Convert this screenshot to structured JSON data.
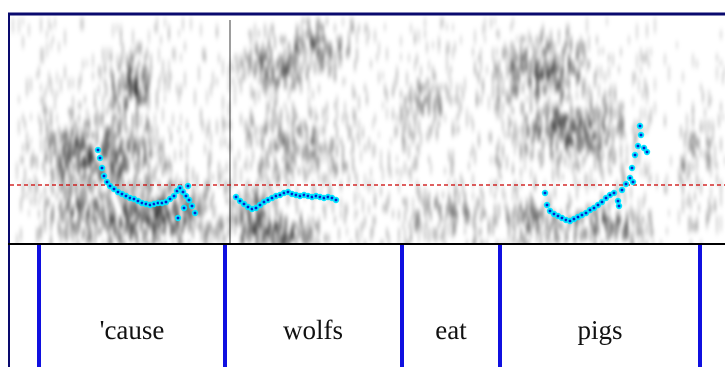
{
  "words": [
    "'cause",
    "wolfs",
    "eat",
    "pigs"
  ],
  "colors": {
    "frame": "#0a0a6e",
    "boundary": "#1010e0",
    "pitch_point": "#00e5ff",
    "pitch_core": "#0a1ec8",
    "reference_line": "#cc0000",
    "spectrogram": "#000000"
  },
  "reference_line_style": "dashed"
}
